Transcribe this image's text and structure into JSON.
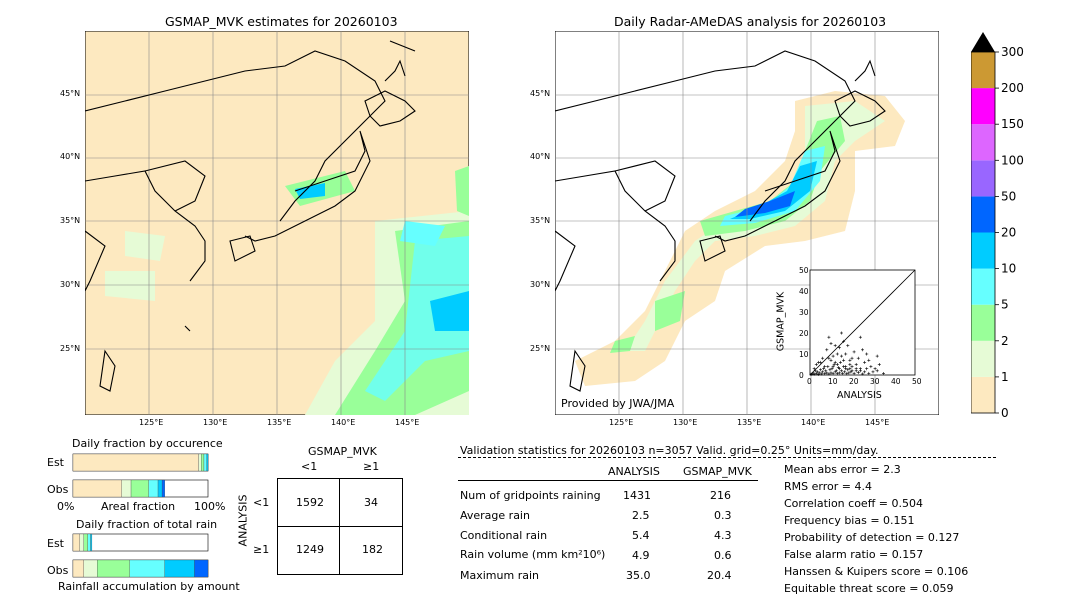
{
  "left_map": {
    "title": "GSMAP_MVK estimates for 20260103",
    "lat_labels": [
      "45°N",
      "40°N",
      "35°N",
      "30°N",
      "25°N"
    ],
    "lon_labels": [
      "125°E",
      "130°E",
      "135°E",
      "140°E",
      "145°E"
    ]
  },
  "right_map": {
    "title": "Daily Radar-AMeDAS analysis for 20260103",
    "lat_labels": [
      "45°N",
      "40°N",
      "35°N",
      "30°N",
      "25°N"
    ],
    "lon_labels": [
      "125°E",
      "130°E",
      "135°E",
      "140°E",
      "145°E"
    ],
    "credit": "Provided by JWA/JMA"
  },
  "colorbar": {
    "ticks": [
      "0",
      "1",
      "2",
      "5",
      "10",
      "20",
      "50",
      "100",
      "150",
      "200",
      "300"
    ],
    "colors": [
      "#fde9c0",
      "#e6fbd6",
      "#99ff99",
      "#66ffff",
      "#00ccff",
      "#0066ff",
      "#9966ff",
      "#dd66ff",
      "#ff00ff",
      "#cc9933"
    ],
    "extend_color": "#000000"
  },
  "scatter": {
    "xlabel": "ANALYSIS",
    "ylabel": "GSMAP_MVK",
    "ticks": [
      "0",
      "10",
      "20",
      "30",
      "40",
      "50"
    ]
  },
  "fractions": {
    "occurrence_title": "Daily fraction by occurence",
    "rain_title": "Daily fraction of total rain",
    "est_label": "Est",
    "obs_label": "Obs",
    "axis_left": "0%",
    "axis_mid": "Areal fraction",
    "axis_right": "100%",
    "rain_footer": "Rainfall accumulation by amount"
  },
  "contingency": {
    "title": "GSMAP_MVK",
    "col_lt": "<1",
    "col_ge": "≥1",
    "row_axis": "ANALYSIS",
    "row_lt": "<1",
    "row_ge": "≥1",
    "a": "1592",
    "b": "34",
    "c": "1249",
    "d": "182"
  },
  "validation": {
    "header": "Validation statistics for 20260103  n=3057 Valid. grid=0.25° Units=mm/day.",
    "col_analysis": "ANALYSIS",
    "col_gsmap": "GSMAP_MVK",
    "rows": [
      {
        "label": "Num of gridpoints raining",
        "analysis": "1431",
        "gsmap": "216"
      },
      {
        "label": "Average rain",
        "analysis": "2.5",
        "gsmap": "0.3"
      },
      {
        "label": "Conditional rain",
        "analysis": "5.4",
        "gsmap": "4.3"
      },
      {
        "label": "Rain volume (mm km²10⁶)",
        "analysis": "4.9",
        "gsmap": "0.6"
      },
      {
        "label": "Maximum rain",
        "analysis": "35.0",
        "gsmap": "20.4"
      }
    ],
    "scores": [
      "Mean abs error =    2.3",
      "RMS error =    4.4",
      "Correlation coeff =  0.504",
      "Frequency bias =  0.151",
      "Probability of detection =  0.127",
      "False alarm ratio =  0.157",
      "Hanssen & Kuipers score =  0.106",
      "Equitable threat score =  0.059"
    ]
  },
  "chart_data": [
    {
      "type": "heatmap",
      "title": "GSMAP_MVK estimates for 20260103",
      "x_axis": "longitude",
      "xlim": [
        120,
        150
      ],
      "y_axis": "latitude",
      "ylim": [
        20,
        50
      ],
      "units": "mm/day"
    },
    {
      "type": "heatmap",
      "title": "Daily Radar-AMeDAS analysis for 20260103",
      "x_axis": "longitude",
      "xlim": [
        120,
        150
      ],
      "y_axis": "latitude",
      "ylim": [
        20,
        50
      ],
      "units": "mm/day"
    },
    {
      "type": "scatter",
      "xlabel": "ANALYSIS",
      "ylabel": "GSMAP_MVK",
      "xlim": [
        0,
        50
      ],
      "ylim": [
        0,
        50
      ],
      "points": [
        [
          0.5,
          0.3
        ],
        [
          1,
          0.5
        ],
        [
          1.5,
          1
        ],
        [
          2,
          0.4
        ],
        [
          2.5,
          2
        ],
        [
          3,
          0.8
        ],
        [
          3.5,
          1.5
        ],
        [
          4,
          0.3
        ],
        [
          4.5,
          1
        ],
        [
          5,
          2.5
        ],
        [
          5.5,
          0.5
        ],
        [
          6,
          1.5
        ],
        [
          6.5,
          3
        ],
        [
          7,
          0.6
        ],
        [
          7.5,
          2
        ],
        [
          8,
          1
        ],
        [
          8.5,
          4
        ],
        [
          9,
          0.5
        ],
        [
          9.5,
          2.5
        ],
        [
          10,
          1
        ],
        [
          10.5,
          3
        ],
        [
          11,
          0.8
        ],
        [
          11.5,
          5
        ],
        [
          12,
          1.5
        ],
        [
          12.5,
          2
        ],
        [
          13,
          0.7
        ],
        [
          13.5,
          3.5
        ],
        [
          14,
          1
        ],
        [
          14.5,
          6
        ],
        [
          15,
          2
        ],
        [
          15.5,
          0.8
        ],
        [
          16,
          4
        ],
        [
          16.5,
          1.5
        ],
        [
          17,
          3
        ],
        [
          17.5,
          0.6
        ],
        [
          18,
          2.5
        ],
        [
          18.5,
          1
        ],
        [
          19,
          5
        ],
        [
          19.5,
          1.5
        ],
        [
          20,
          2
        ],
        [
          21,
          0.8
        ],
        [
          22,
          3
        ],
        [
          23,
          1.2
        ],
        [
          24,
          2
        ],
        [
          25,
          0.5
        ],
        [
          26,
          1.5
        ],
        [
          27,
          3
        ],
        [
          28,
          0.8
        ],
        [
          30,
          1.5
        ],
        [
          32,
          2
        ],
        [
          35,
          0.7
        ],
        [
          8,
          12
        ],
        [
          10,
          15
        ],
        [
          12,
          14
        ],
        [
          15,
          20
        ],
        [
          9,
          18
        ],
        [
          14,
          13
        ],
        [
          17,
          10
        ],
        [
          20,
          8
        ],
        [
          16,
          16
        ],
        [
          25,
          12
        ],
        [
          28,
          7
        ],
        [
          32,
          9
        ],
        [
          24,
          18
        ],
        [
          11,
          9
        ],
        [
          6,
          8
        ],
        [
          22,
          5
        ],
        [
          19,
          7
        ],
        [
          13,
          10
        ],
        [
          18,
          14
        ],
        [
          5,
          6
        ],
        [
          7,
          4
        ],
        [
          3,
          5
        ],
        [
          2,
          3
        ],
        [
          4,
          6
        ],
        [
          26,
          6
        ],
        [
          29,
          4
        ],
        [
          31,
          3
        ],
        [
          33,
          5
        ],
        [
          27,
          10
        ],
        [
          21,
          11
        ],
        [
          23,
          8
        ],
        [
          15,
          9
        ],
        [
          16,
          7
        ],
        [
          12,
          6
        ],
        [
          10,
          7
        ],
        [
          9,
          8
        ],
        [
          11,
          4
        ],
        [
          13,
          5
        ],
        [
          14,
          3
        ],
        [
          17,
          4
        ],
        [
          19,
          3
        ],
        [
          20,
          4
        ],
        [
          22,
          2
        ],
        [
          24,
          3
        ]
      ]
    },
    {
      "type": "bar",
      "title": "Daily fraction by occurence",
      "categories": [
        "Est",
        "Obs"
      ],
      "series": [
        {
          "values": [
            0.93,
            0.36
          ]
        },
        {
          "values": [
            0.02,
            0.07
          ]
        },
        {
          "values": [
            0.02,
            0.13
          ]
        },
        {
          "values": [
            0.02,
            0.07
          ]
        },
        {
          "values": [
            0.01,
            0.03
          ]
        },
        {
          "values": [
            0.0,
            0.02
          ]
        }
      ]
    },
    {
      "type": "bar",
      "title": "Daily fraction of total rain",
      "categories": [
        "Est",
        "Obs"
      ],
      "series": [
        {
          "values": [
            0.05,
            0.08
          ]
        },
        {
          "values": [
            0.03,
            0.1
          ]
        },
        {
          "values": [
            0.03,
            0.24
          ]
        },
        {
          "values": [
            0.02,
            0.26
          ]
        },
        {
          "values": [
            0.01,
            0.22
          ]
        },
        {
          "values": [
            0.0,
            0.1
          ]
        }
      ]
    }
  ]
}
